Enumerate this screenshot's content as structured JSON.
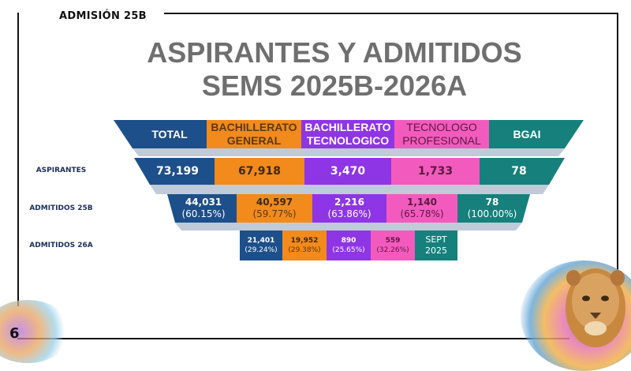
{
  "header_tag": "ADMISIÓN 25B",
  "title": {
    "line1": "ASPIRANTES Y ADMITIDOS",
    "line2": "SEMS 2025B-2026A"
  },
  "columns": [
    "TOTAL",
    "BACHILLERATO GENERAL",
    "BACHILLERATO TECNOLOGICO",
    "TECNOLOGO PROFESIONAL",
    "BGAI"
  ],
  "row_labels": {
    "aspirantes": "ASPIRANTES",
    "admitidos_25b": "ADMITIDOS 25B",
    "admitidos_26a": "ADMITIDOS 26A"
  },
  "aspirantes": [
    "73,199",
    "67,918",
    "3,470",
    "1,733",
    "78"
  ],
  "admitidos_25b": [
    {
      "value": "44,031",
      "pct": "(60.15%)"
    },
    {
      "value": "40,597",
      "pct": "(59.77%)"
    },
    {
      "value": "2,216",
      "pct": "(63.86%)"
    },
    {
      "value": "1,140",
      "pct": "(65.78%)"
    },
    {
      "value": "78",
      "pct": "(100.00%)"
    }
  ],
  "admitidos_26a": [
    {
      "value": "21,401",
      "pct": "(29.24%)"
    },
    {
      "value": "19,952",
      "pct": "(29.38%)"
    },
    {
      "value": "890",
      "pct": "(25.65%)"
    },
    {
      "value": "559",
      "pct": "(32.26%)"
    },
    {
      "value": "SEPT",
      "pct": "2025"
    }
  ],
  "slide_number": "6",
  "colors": {
    "total": "#1d4f8a",
    "general": "#f28a1c",
    "tecnologico": "#8e35e6",
    "profesional": "#f25bbd",
    "bgai": "#16807c"
  }
}
